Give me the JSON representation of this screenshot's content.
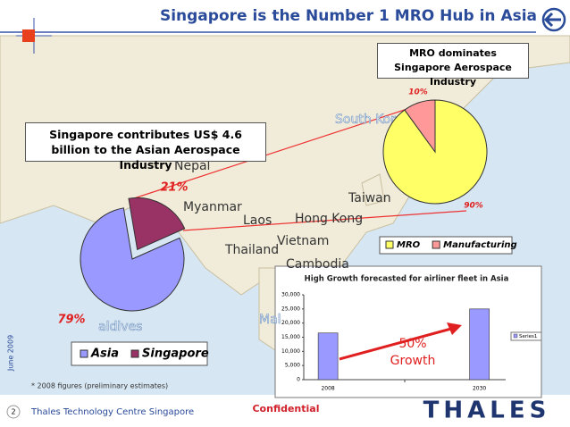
{
  "title": "Singapore is the Number 1 MRO Hub in Asia",
  "footer": {
    "page": "2",
    "company": "Thales Technology Centre Singapore",
    "classification": "Confidential",
    "logo": "THALES",
    "date": "June 2009"
  },
  "note": "* 2008 figures (preliminary estimates)",
  "map_labels": [
    "South Kore",
    "Nepal",
    "Myanmar",
    "Taiwan",
    "Laos",
    "Hong Kong",
    "Thailand",
    "Vietnam",
    "Cambodia",
    "aldives",
    "Mal"
  ],
  "chart_data": [
    {
      "type": "pie",
      "title": "Singapore contributes US$ 4.6 billion to the Asian Aerospace Industry",
      "categories": [
        "Asia",
        "Singapore"
      ],
      "values": [
        79,
        21
      ],
      "value_labels": [
        "79%",
        "21%"
      ],
      "colors": [
        "#9999ff",
        "#993366"
      ],
      "legend": "bottom"
    },
    {
      "type": "pie",
      "title": "MRO dominates Singapore Aerospace Industry",
      "categories": [
        "MRO",
        "Manufacturing"
      ],
      "values": [
        90,
        10
      ],
      "value_labels": [
        "90%",
        "10%"
      ],
      "colors": [
        "#ffff66",
        "#ff9999"
      ],
      "legend": "bottom"
    },
    {
      "type": "bar",
      "title": "High Growth forecasted for airliner fleet in Asia",
      "categories": [
        "2008",
        "2030"
      ],
      "series": [
        {
          "name": "Series1",
          "color": "#9999ff",
          "values": [
            16500,
            25000
          ]
        }
      ],
      "ylim": [
        0,
        30000
      ],
      "yticks": [
        0,
        {
          "value": 5000,
          "label": "5,000"
        },
        {
          "value": 10000,
          "label": "10,000"
        },
        {
          "value": 15000,
          "label": "15,000"
        },
        {
          "value": 20000,
          "label": "20,000"
        },
        {
          "value": 25000,
          "label": "25,000"
        },
        {
          "value": 30000,
          "label": "30,000"
        }
      ],
      "annotations": [
        "50%",
        "Growth"
      ],
      "legend": "right"
    }
  ]
}
